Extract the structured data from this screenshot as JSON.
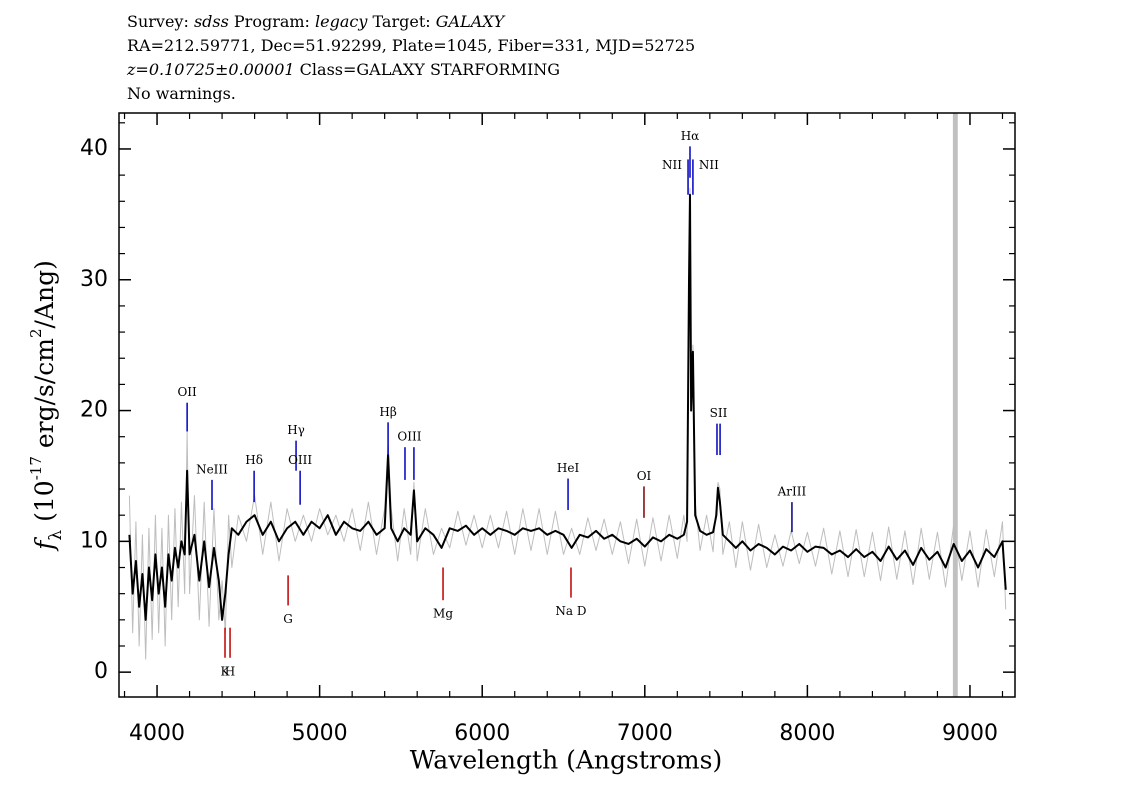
{
  "chart_data": {
    "type": "line",
    "title_lines": [
      [
        {
          "text": "Survey: "
        },
        {
          "text": "sdss",
          "italic": true
        },
        {
          "text": " Program: "
        },
        {
          "text": "legacy",
          "italic": true
        },
        {
          "text": " Target: "
        },
        {
          "text": "GALAXY",
          "italic": true
        }
      ],
      [
        {
          "text": "RA=212.59771, Dec=51.92299, Plate=1045, Fiber=331, MJD=52725"
        }
      ],
      [
        {
          "text": "z=0.10725±0.00001",
          "italic": true
        },
        {
          "text": " Class=GALAXY STARFORMING"
        }
      ],
      [
        {
          "text": "No warnings."
        }
      ]
    ],
    "x_label": "Wavelength (Angstroms)",
    "y_label_parts": [
      {
        "text": "f",
        "italic": true
      },
      {
        "text": "λ",
        "sub": true
      },
      {
        "text": " (10"
      },
      {
        "text": "-17",
        "sup": true
      },
      {
        "text": " erg/s/cm"
      },
      {
        "text": "2",
        "sup": true
      },
      {
        "text": "/Ang)"
      }
    ],
    "xlim": [
      3766,
      9277
    ],
    "ylim": [
      -1.9,
      42.75
    ],
    "xticks": [
      4000,
      5000,
      6000,
      7000,
      8000,
      9000
    ],
    "yticks": [
      0,
      10,
      20,
      30,
      40
    ],
    "xminorticks": [
      3800,
      4200,
      4400,
      4600,
      4800,
      5200,
      5400,
      5600,
      5800,
      6200,
      6400,
      6600,
      6800,
      7200,
      7400,
      7600,
      7800,
      8200,
      8400,
      8600,
      8800,
      9200
    ],
    "yminorticks": [
      2,
      4,
      6,
      8,
      12,
      14,
      16,
      18,
      22,
      24,
      26,
      28,
      32,
      34,
      36,
      38,
      42
    ],
    "masked_region": [
      8895,
      8925
    ],
    "masked_color": "#c0c0c0",
    "x": [
      3830,
      3850,
      3870,
      3890,
      3910,
      3930,
      3950,
      3970,
      3990,
      4010,
      4030,
      4050,
      4070,
      4090,
      4110,
      4130,
      4150,
      4170,
      4185,
      4200,
      4230,
      4260,
      4290,
      4320,
      4350,
      4380,
      4400,
      4420,
      4440,
      4460,
      4500,
      4550,
      4600,
      4650,
      4700,
      4750,
      4800,
      4850,
      4900,
      4950,
      5000,
      5050,
      5100,
      5150,
      5200,
      5250,
      5300,
      5350,
      5400,
      5421,
      5440,
      5480,
      5520,
      5560,
      5580,
      5600,
      5650,
      5700,
      5750,
      5800,
      5850,
      5900,
      5950,
      6000,
      6050,
      6100,
      6150,
      6200,
      6250,
      6300,
      6350,
      6400,
      6450,
      6500,
      6550,
      6600,
      6650,
      6700,
      6750,
      6800,
      6850,
      6900,
      6950,
      7000,
      7050,
      7100,
      7150,
      7200,
      7240,
      7260,
      7272,
      7278,
      7285,
      7296,
      7310,
      7340,
      7380,
      7420,
      7440,
      7450,
      7462,
      7480,
      7520,
      7560,
      7600,
      7650,
      7700,
      7750,
      7800,
      7850,
      7900,
      7950,
      8000,
      8050,
      8100,
      8150,
      8200,
      8250,
      8300,
      8350,
      8400,
      8450,
      8500,
      8550,
      8600,
      8650,
      8700,
      8750,
      8800,
      8850,
      8900,
      8950,
      9000,
      9050,
      9100,
      9150,
      9200,
      9220
    ],
    "series": [
      {
        "color": "#bebebe",
        "width": 1,
        "values": [
          13.5,
          3,
          11.5,
          2,
          10.5,
          1,
          11,
          2.5,
          12,
          3,
          11,
          2,
          12,
          4,
          12.5,
          5,
          13,
          6,
          18.4,
          6,
          13.5,
          4,
          13,
          3.5,
          12.5,
          4,
          7,
          3,
          12,
          8,
          12,
          10,
          13.5,
          9,
          13,
          8.5,
          12.5,
          10,
          12,
          10,
          12.5,
          10.5,
          12,
          10,
          12.5,
          9.3,
          13,
          9,
          12.5,
          17.5,
          12.5,
          8.5,
          12.5,
          9,
          14.5,
          8.5,
          12.5,
          9,
          11,
          9.5,
          12.3,
          9.7,
          12,
          9.5,
          12,
          9.5,
          12.3,
          9,
          12.5,
          9.3,
          12.5,
          9,
          12.3,
          9,
          11,
          9,
          11.8,
          9.3,
          11.7,
          9,
          11.5,
          8.3,
          11.7,
          8.1,
          11.8,
          8.5,
          12,
          8.7,
          12,
          10,
          31,
          37,
          21,
          25,
          13,
          9.3,
          12,
          9.2,
          13,
          14.5,
          14,
          9,
          11.5,
          8,
          11.5,
          7.8,
          11.3,
          8,
          10.5,
          8.1,
          10.8,
          8.3,
          10.7,
          8.1,
          11,
          7.5,
          10.8,
          7.3,
          10.9,
          7.3,
          10.7,
          7,
          11.1,
          7.1,
          10.8,
          6.7,
          11,
          7.1,
          10.7,
          6.5,
          11.3,
          7,
          10.8,
          6.5,
          10.9,
          7.3,
          11.5,
          4.8
        ]
      },
      {
        "color": "#000000",
        "width": 2,
        "values": [
          10.5,
          6,
          8.5,
          5,
          7.5,
          4,
          8,
          5.5,
          9,
          6,
          8,
          5,
          9,
          7,
          9.5,
          8,
          10,
          9,
          15.4,
          9,
          10.5,
          7,
          10,
          6.5,
          9.5,
          7,
          4,
          6,
          9,
          11,
          10.5,
          11.5,
          12,
          10.5,
          11.5,
          10,
          11,
          11.5,
          10.5,
          11.5,
          11,
          12,
          10.5,
          11.5,
          11,
          10.8,
          11.5,
          10.5,
          11,
          16.6,
          11,
          10,
          11,
          10.5,
          13.9,
          10,
          11,
          10.5,
          9.5,
          11,
          10.8,
          11.2,
          10.5,
          11,
          10.5,
          11,
          10.8,
          10.5,
          11,
          10.8,
          11,
          10.5,
          10.8,
          10.5,
          9.5,
          10.5,
          10.3,
          10.8,
          10.2,
          10.5,
          10,
          9.8,
          10.2,
          9.6,
          10.3,
          10,
          10.5,
          10.2,
          10.5,
          11.5,
          30,
          36.5,
          20,
          24.5,
          12,
          10.8,
          10.5,
          10.7,
          12,
          14.1,
          13,
          10.5,
          10,
          9.5,
          10,
          9.3,
          9.8,
          9.5,
          9,
          9.6,
          9.3,
          9.8,
          9.2,
          9.6,
          9.5,
          9,
          9.3,
          8.8,
          9.4,
          8.8,
          9.2,
          8.5,
          9.6,
          8.6,
          9.3,
          8.2,
          9.5,
          8.6,
          9.2,
          8,
          9.8,
          8.5,
          9.3,
          8,
          9.4,
          8.8,
          10,
          6.3
        ]
      }
    ],
    "annotations": [
      {
        "label": "OII",
        "x": [
          4185
        ],
        "y": [
          18.4,
          20.6
        ],
        "color": "#0000c0",
        "label_at": "above"
      },
      {
        "label": "NeIII",
        "x": [
          4338
        ],
        "y": [
          12.4,
          14.7
        ],
        "color": "#0000c0",
        "label_at": "above"
      },
      {
        "label": "Hδ",
        "x": [
          4597
        ],
        "y": [
          13.0,
          15.4
        ],
        "color": "#0000c0",
        "label_at": "above"
      },
      {
        "label": "Hγ",
        "x": [
          4855
        ],
        "y": [
          15.4,
          17.7
        ],
        "color": "#0000c0",
        "label_at": "above"
      },
      {
        "label": "OIII",
        "x": [
          4880
        ],
        "y": [
          12.8,
          15.4
        ],
        "color": "#0000c0",
        "label_at": "above"
      },
      {
        "label": "Hβ",
        "x": [
          5421
        ],
        "y": [
          16.6,
          19.1
        ],
        "color": "#0000c0",
        "label_at": "above"
      },
      {
        "label": "OIII",
        "x": [
          5525,
          5580
        ],
        "y": [
          14.7,
          17.2
        ],
        "color": "#0000c0",
        "label_at": "above"
      },
      {
        "label": "HeI",
        "x": [
          6528
        ],
        "y": [
          12.4,
          14.8
        ],
        "color": "#0000c0",
        "label_at": "above"
      },
      {
        "label": "OI",
        "x": [
          6995
        ],
        "y": [
          11.8,
          14.2
        ],
        "color": "#800000",
        "label_at": "above"
      },
      {
        "label": "NII",
        "x": [
          7266
        ],
        "y": [
          36.5,
          39.2
        ],
        "color": "#0000c0",
        "label_at": "left"
      },
      {
        "label": "Hα",
        "x": [
          7278
        ],
        "y": [
          37.8,
          40.2
        ],
        "color": "#0000c0",
        "label_at": "above"
      },
      {
        "label": "NII",
        "x": [
          7296
        ],
        "y": [
          36.5,
          39.2
        ],
        "color": "#0000c0",
        "label_at": "right"
      },
      {
        "label": "SII",
        "x": [
          7444,
          7463
        ],
        "y": [
          16.6,
          19.0
        ],
        "color": "#0000c0",
        "label_at": "above"
      },
      {
        "label": "ArIII",
        "x": [
          7905
        ],
        "y": [
          10.7,
          13.0
        ],
        "color": "#000080",
        "label_at": "above"
      },
      {
        "label": "K",
        "x": [
          4418
        ],
        "y": [
          1.1,
          3.4
        ],
        "color": "#c00000",
        "label_at": "below"
      },
      {
        "label": "H",
        "x": [
          4449
        ],
        "y": [
          1.1,
          3.4
        ],
        "color": "#c00000",
        "label_at": "below"
      },
      {
        "label": "G",
        "x": [
          4806
        ],
        "y": [
          5.1,
          7.4
        ],
        "color": "#c00000",
        "label_at": "below"
      },
      {
        "label": "Mg",
        "x": [
          5759
        ],
        "y": [
          5.5,
          8.0
        ],
        "color": "#c00000",
        "label_at": "below"
      },
      {
        "label": "Na D",
        "x": [
          6546
        ],
        "y": [
          5.7,
          8.0
        ],
        "color": "#c00000",
        "label_at": "below"
      }
    ]
  }
}
